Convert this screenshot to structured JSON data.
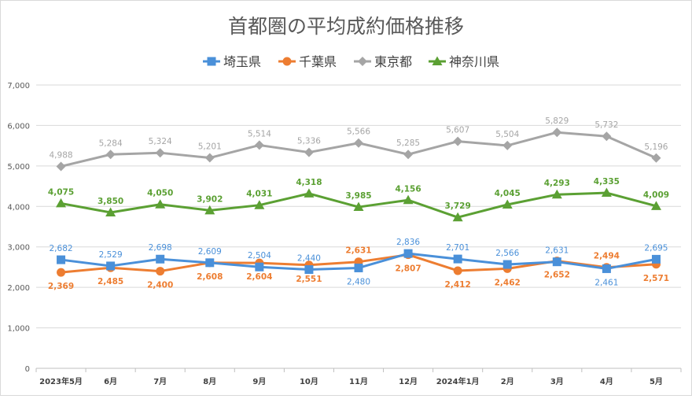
{
  "chart_data": {
    "type": "line",
    "title": "首都圏の平均成約価格推移",
    "categories": [
      "2023年5月",
      "6月",
      "7月",
      "8月",
      "9月",
      "10月",
      "11月",
      "12月",
      "2024年1月",
      "2月",
      "3月",
      "4月",
      "5月"
    ],
    "ylim": [
      0,
      7000
    ],
    "yticks": [
      0,
      1000,
      2000,
      3000,
      4000,
      5000,
      6000,
      7000
    ],
    "ytick_labels": [
      "0",
      "1,000",
      "2,000",
      "3,000",
      "4,000",
      "5,000",
      "6,000",
      "7,000"
    ],
    "grid": true,
    "legend_position": "top",
    "series": [
      {
        "name": "埼玉県",
        "color": "#4a90d9",
        "marker": "square",
        "values": [
          2682,
          2529,
          2698,
          2609,
          2504,
          2440,
          2480,
          2836,
          2701,
          2566,
          2631,
          2461,
          2695
        ],
        "labels": [
          "2,682",
          "2,529",
          "2,698",
          "2,609",
          "2,504",
          "2,440",
          "2,480",
          "2,836",
          "2,701",
          "2,566",
          "2,631",
          "2,461",
          "2,695"
        ],
        "label_pos": [
          "above",
          "above",
          "above",
          "above",
          "above",
          "above",
          "below",
          "above",
          "above",
          "above",
          "above",
          "below",
          "above"
        ]
      },
      {
        "name": "千葉県",
        "color": "#ed7d31",
        "marker": "circle",
        "values": [
          2369,
          2485,
          2400,
          2608,
          2604,
          2551,
          2631,
          2807,
          2412,
          2462,
          2652,
          2494,
          2571
        ],
        "labels": [
          "2,369",
          "2,485",
          "2,400",
          "2,608",
          "2,604",
          "2,551",
          "2,631",
          "2,807",
          "2,412",
          "2,462",
          "2,652",
          "2,494",
          "2,571"
        ],
        "label_pos": [
          "below",
          "below",
          "below",
          "below",
          "below",
          "below",
          "above",
          "below",
          "below",
          "below",
          "below",
          "above",
          "below"
        ]
      },
      {
        "name": "東京都",
        "color": "#a5a5a5",
        "marker": "diamond",
        "values": [
          4988,
          5284,
          5324,
          5201,
          5514,
          5336,
          5566,
          5285,
          5607,
          5504,
          5829,
          5732,
          5196
        ],
        "labels": [
          "4,988",
          "5,284",
          "5,324",
          "5,201",
          "5,514",
          "5,336",
          "5,566",
          "5,285",
          "5,607",
          "5,504",
          "5,829",
          "5,732",
          "5,196"
        ],
        "label_pos": [
          "above",
          "above",
          "above",
          "above",
          "above",
          "above",
          "above",
          "above",
          "above",
          "above",
          "above",
          "above",
          "above"
        ]
      },
      {
        "name": "神奈川県",
        "color": "#5ba033",
        "marker": "triangle",
        "values": [
          4075,
          3850,
          4050,
          3902,
          4031,
          4318,
          3985,
          4156,
          3729,
          4045,
          4293,
          4335,
          4009
        ],
        "labels": [
          "4,075",
          "3,850",
          "4,050",
          "3,902",
          "4,031",
          "4,318",
          "3,985",
          "4,156",
          "3,729",
          "4,045",
          "4,293",
          "4,335",
          "4,009"
        ],
        "label_pos": [
          "above",
          "above",
          "above",
          "above",
          "above",
          "above",
          "above",
          "above",
          "above",
          "above",
          "above",
          "above",
          "above"
        ]
      }
    ]
  }
}
